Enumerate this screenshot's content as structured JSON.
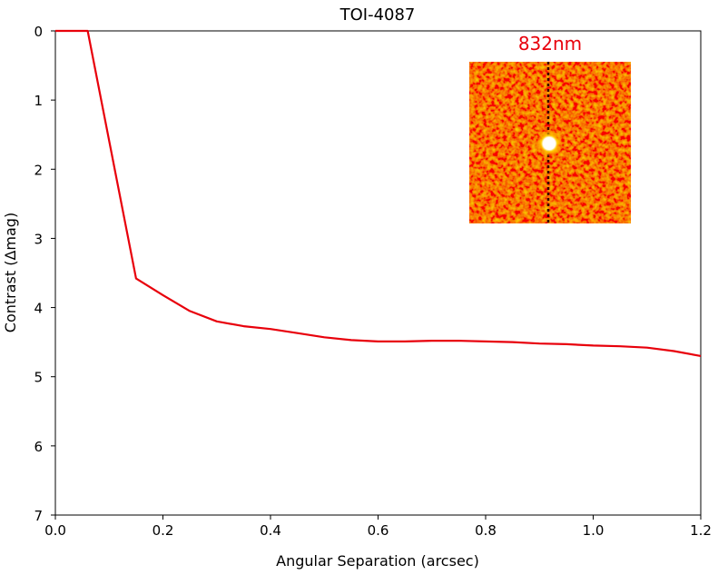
{
  "chart_data": {
    "type": "line",
    "title": "TOI-4087",
    "xlabel": "Angular Separation (arcsec)",
    "ylabel": "Contrast (Δmag)",
    "xlim": [
      0.0,
      1.2
    ],
    "ylim": [
      0,
      7
    ],
    "y_inverted": true,
    "grid": false,
    "x_ticks": [
      "0.0",
      "0.2",
      "0.4",
      "0.6",
      "0.8",
      "1.0",
      "1.2"
    ],
    "y_ticks": [
      "0",
      "1",
      "2",
      "3",
      "4",
      "5",
      "6",
      "7"
    ],
    "series": [
      {
        "color": "#e8000b",
        "x": [
          0.0,
          0.06,
          0.15,
          0.2,
          0.25,
          0.3,
          0.35,
          0.4,
          0.45,
          0.5,
          0.55,
          0.6,
          0.65,
          0.7,
          0.75,
          0.8,
          0.85,
          0.9,
          0.95,
          1.0,
          1.05,
          1.1,
          1.15,
          1.2
        ],
        "y": [
          0.0,
          0.0,
          3.58,
          3.82,
          4.05,
          4.2,
          4.27,
          4.31,
          4.37,
          4.43,
          4.47,
          4.49,
          4.49,
          4.48,
          4.48,
          4.49,
          4.5,
          4.52,
          4.53,
          4.55,
          4.56,
          4.58,
          4.63,
          4.7
        ]
      }
    ],
    "inset": {
      "label": "832nm",
      "label_color": "#e8000b",
      "image": "speckle-reconstructed-image"
    }
  }
}
